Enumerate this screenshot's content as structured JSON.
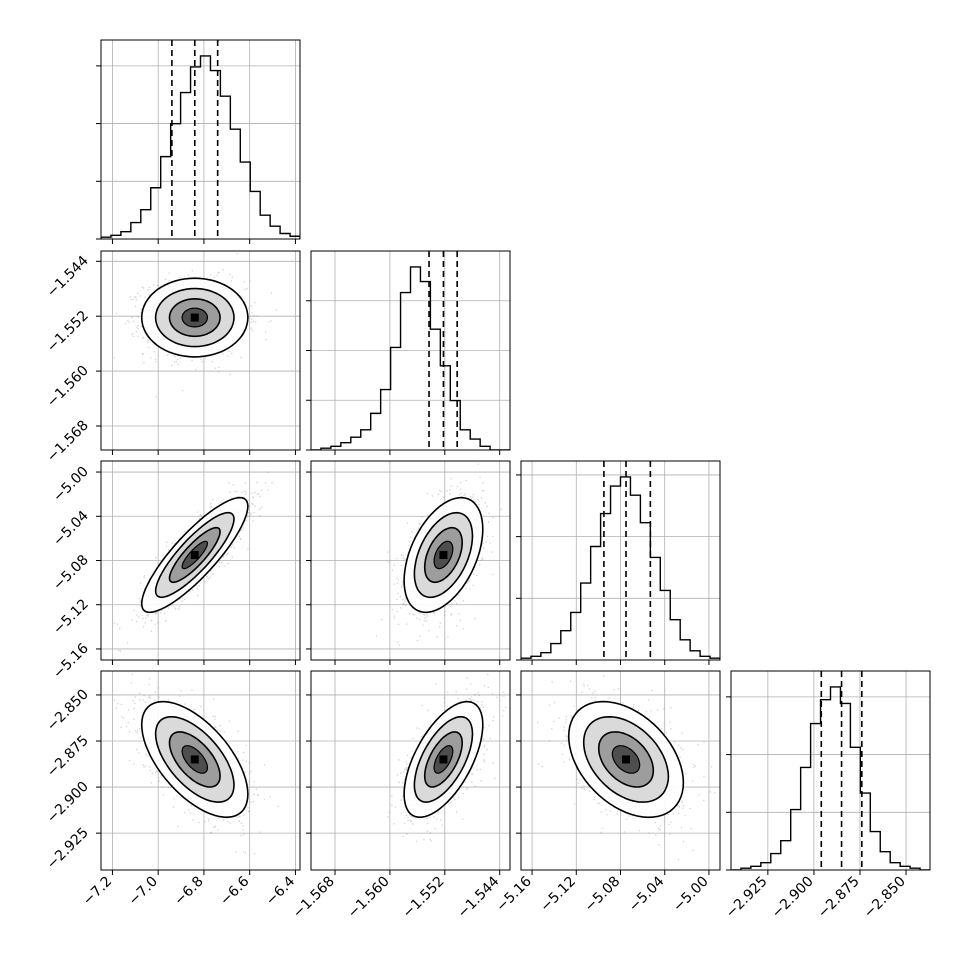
{
  "chart_data": {
    "type": "corner",
    "grid": true,
    "colors": {
      "line": "#000000",
      "grid": "#b0b0b0",
      "points": "#7f7f7f",
      "frame": "#000000"
    },
    "parameters": [
      {
        "range": [
          -7.25,
          -6.38
        ],
        "ticks": [
          -7.2,
          -7.0,
          -6.8,
          -6.6,
          -6.4
        ],
        "tick_labels": [
          "−7.2",
          "−7.0",
          "−6.8",
          "−6.6",
          "−6.4"
        ],
        "quantiles": [
          -6.94,
          -6.84,
          -6.74
        ],
        "peak": -6.84,
        "sd": 0.085,
        "hist_density": [
          0.01,
          0.02,
          0.04,
          0.09,
          0.16,
          0.28,
          0.45,
          0.63,
          0.8,
          0.94,
          1.0,
          0.92,
          0.78,
          0.6,
          0.42,
          0.26,
          0.13,
          0.07,
          0.03,
          0.015
        ],
        "diag_yticks_frac": [
          0.0,
          0.29,
          0.58,
          0.87
        ]
      },
      {
        "range": [
          -1.5715,
          -1.5425
        ],
        "ticks": [
          -1.568,
          -1.56,
          -1.552,
          -1.544
        ],
        "tick_labels": [
          "−1.568",
          "−1.560",
          "−1.552",
          "−1.544"
        ],
        "quantiles": [
          -1.5543,
          -1.5522,
          -1.5502
        ],
        "peak": -1.5522,
        "sd": 0.0021,
        "hist_density": [
          0.0,
          0.01,
          0.02,
          0.04,
          0.07,
          0.11,
          0.2,
          0.33,
          0.56,
          0.86,
          1.0,
          0.92,
          0.66,
          0.46,
          0.27,
          0.11,
          0.06,
          0.02,
          0.0,
          0.0
        ],
        "diag_yticks_frac": [
          0.0,
          0.25,
          0.5,
          0.75
        ]
      },
      {
        "range": [
          -5.17,
          -4.99
        ],
        "ticks": [
          -5.16,
          -5.12,
          -5.08,
          -5.04,
          -5.0
        ],
        "tick_labels": [
          "−5.16",
          "−5.12",
          "−5.08",
          "−5.04",
          "−5.00"
        ],
        "quantiles": [
          -5.095,
          -5.075,
          -5.053
        ],
        "peak": -5.075,
        "sd": 0.019,
        "hist_density": [
          0.01,
          0.02,
          0.04,
          0.09,
          0.16,
          0.26,
          0.42,
          0.62,
          0.8,
          0.95,
          1.0,
          0.9,
          0.75,
          0.56,
          0.38,
          0.22,
          0.11,
          0.05,
          0.02,
          0.01
        ],
        "diag_yticks_frac": [
          0.0,
          0.31,
          0.62,
          0.93
        ]
      },
      {
        "range": [
          -2.945,
          -2.837
        ],
        "ticks": [
          -2.925,
          -2.9,
          -2.875,
          -2.85
        ],
        "tick_labels": [
          "−2.925",
          "−2.900",
          "−2.875",
          "−2.850"
        ],
        "quantiles": [
          -2.896,
          -2.885,
          -2.874
        ],
        "peak": -2.885,
        "sd": 0.0115,
        "hist_density": [
          0.0,
          0.01,
          0.02,
          0.04,
          0.09,
          0.16,
          0.33,
          0.56,
          0.8,
          0.93,
          1.0,
          0.91,
          0.67,
          0.42,
          0.21,
          0.1,
          0.04,
          0.02,
          0.01,
          0.0
        ],
        "diag_yticks_frac": [
          0.0,
          0.29,
          0.58,
          0.87
        ]
      }
    ],
    "correlations": [
      [
        1.0,
        0.0,
        0.85,
        -0.6
      ],
      [
        0.0,
        1.0,
        0.45,
        0.6
      ],
      [
        0.85,
        0.45,
        1.0,
        -0.4
      ],
      [
        -0.6,
        0.6,
        -0.4,
        1.0
      ]
    ]
  }
}
